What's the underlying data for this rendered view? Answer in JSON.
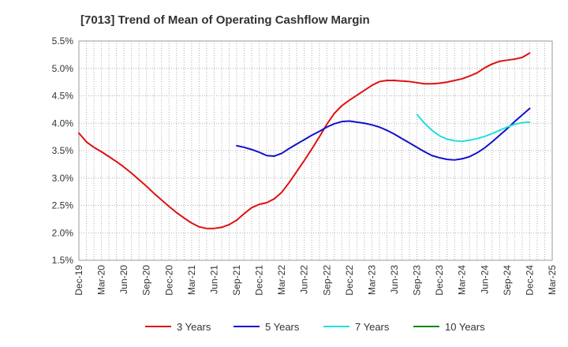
{
  "chart_data": {
    "type": "line",
    "title": "[7013]  Trend of Mean of Operating Cashflow Margin",
    "xlabel": "",
    "ylabel": "",
    "x_ticks": [
      "Dec-19",
      "Mar-20",
      "Jun-20",
      "Sep-20",
      "Dec-20",
      "Mar-21",
      "Jun-21",
      "Sep-21",
      "Dec-21",
      "Mar-22",
      "Jun-22",
      "Sep-22",
      "Dec-22",
      "Mar-23",
      "Jun-23",
      "Sep-23",
      "Dec-23",
      "Mar-24",
      "Jun-24",
      "Sep-24",
      "Dec-24",
      "Mar-25"
    ],
    "y_ticks": [
      "1.5%",
      "2.0%",
      "2.5%",
      "3.0%",
      "3.5%",
      "4.0%",
      "4.5%",
      "5.0%",
      "5.5%"
    ],
    "ylim": [
      1.5,
      5.5
    ],
    "y_unit": "%",
    "grid": true,
    "legend_position": "bottom",
    "series": [
      {
        "name": "3 Years",
        "color": "#dd1111",
        "x": [
          "Dec-19",
          "Jan-20",
          "Feb-20",
          "Mar-20",
          "Apr-20",
          "May-20",
          "Jun-20",
          "Jul-20",
          "Aug-20",
          "Sep-20",
          "Oct-20",
          "Nov-20",
          "Dec-20",
          "Jan-21",
          "Feb-21",
          "Mar-21",
          "Apr-21",
          "May-21",
          "Jun-21",
          "Jul-21",
          "Aug-21",
          "Sep-21",
          "Oct-21",
          "Nov-21",
          "Dec-21",
          "Jan-22",
          "Feb-22",
          "Mar-22",
          "Apr-22",
          "May-22",
          "Jun-22",
          "Jul-22",
          "Aug-22",
          "Sep-22",
          "Oct-22",
          "Nov-22",
          "Dec-22",
          "Jan-23",
          "Feb-23",
          "Mar-23",
          "Apr-23",
          "May-23",
          "Jun-23",
          "Jul-23",
          "Aug-23",
          "Sep-23",
          "Oct-23",
          "Nov-23",
          "Dec-23",
          "Jan-24",
          "Feb-24",
          "Mar-24",
          "Apr-24",
          "May-24",
          "Jun-24",
          "Jul-24",
          "Aug-24",
          "Sep-24",
          "Oct-24",
          "Nov-24",
          "Dec-24"
        ],
        "values": [
          3.82,
          3.66,
          3.56,
          3.48,
          3.39,
          3.3,
          3.2,
          3.09,
          2.97,
          2.85,
          2.72,
          2.6,
          2.48,
          2.37,
          2.27,
          2.18,
          2.11,
          2.08,
          2.08,
          2.1,
          2.15,
          2.23,
          2.35,
          2.46,
          2.52,
          2.55,
          2.62,
          2.74,
          2.92,
          3.12,
          3.32,
          3.53,
          3.75,
          3.98,
          4.18,
          4.32,
          4.42,
          4.51,
          4.6,
          4.69,
          4.76,
          4.78,
          4.78,
          4.77,
          4.76,
          4.74,
          4.72,
          4.72,
          4.73,
          4.75,
          4.78,
          4.81,
          4.86,
          4.92,
          5.01,
          5.08,
          5.13,
          5.15,
          5.17,
          5.2,
          5.28
        ]
      },
      {
        "name": "5 Years",
        "color": "#1111cc",
        "x": [
          "Sep-21",
          "Oct-21",
          "Nov-21",
          "Dec-21",
          "Jan-22",
          "Feb-22",
          "Mar-22",
          "Apr-22",
          "May-22",
          "Jun-22",
          "Jul-22",
          "Aug-22",
          "Sep-22",
          "Oct-22",
          "Nov-22",
          "Dec-22",
          "Jan-23",
          "Feb-23",
          "Mar-23",
          "Apr-23",
          "May-23",
          "Jun-23",
          "Jul-23",
          "Aug-23",
          "Sep-23",
          "Oct-23",
          "Nov-23",
          "Dec-23",
          "Jan-24",
          "Feb-24",
          "Mar-24",
          "Apr-24",
          "May-24",
          "Jun-24",
          "Jul-24",
          "Aug-24",
          "Sep-24",
          "Oct-24",
          "Nov-24",
          "Dec-24"
        ],
        "values": [
          3.59,
          3.56,
          3.52,
          3.47,
          3.41,
          3.4,
          3.45,
          3.54,
          3.62,
          3.7,
          3.78,
          3.85,
          3.93,
          3.99,
          4.03,
          4.04,
          4.02,
          4.0,
          3.97,
          3.93,
          3.87,
          3.8,
          3.72,
          3.64,
          3.56,
          3.48,
          3.41,
          3.37,
          3.34,
          3.33,
          3.35,
          3.39,
          3.46,
          3.55,
          3.66,
          3.78,
          3.9,
          4.03,
          4.15,
          4.27
        ]
      },
      {
        "name": "7 Years",
        "color": "#22dddd",
        "x": [
          "Sep-23",
          "Oct-23",
          "Nov-23",
          "Dec-23",
          "Jan-24",
          "Feb-24",
          "Mar-24",
          "Apr-24",
          "May-24",
          "Jun-24",
          "Jul-24",
          "Aug-24",
          "Sep-24",
          "Oct-24",
          "Nov-24",
          "Dec-24"
        ],
        "values": [
          4.16,
          4.0,
          3.87,
          3.77,
          3.71,
          3.68,
          3.67,
          3.69,
          3.72,
          3.76,
          3.81,
          3.87,
          3.93,
          3.98,
          4.01,
          4.02
        ]
      },
      {
        "name": "10 Years",
        "color": "#118811",
        "x": [],
        "values": []
      }
    ]
  }
}
